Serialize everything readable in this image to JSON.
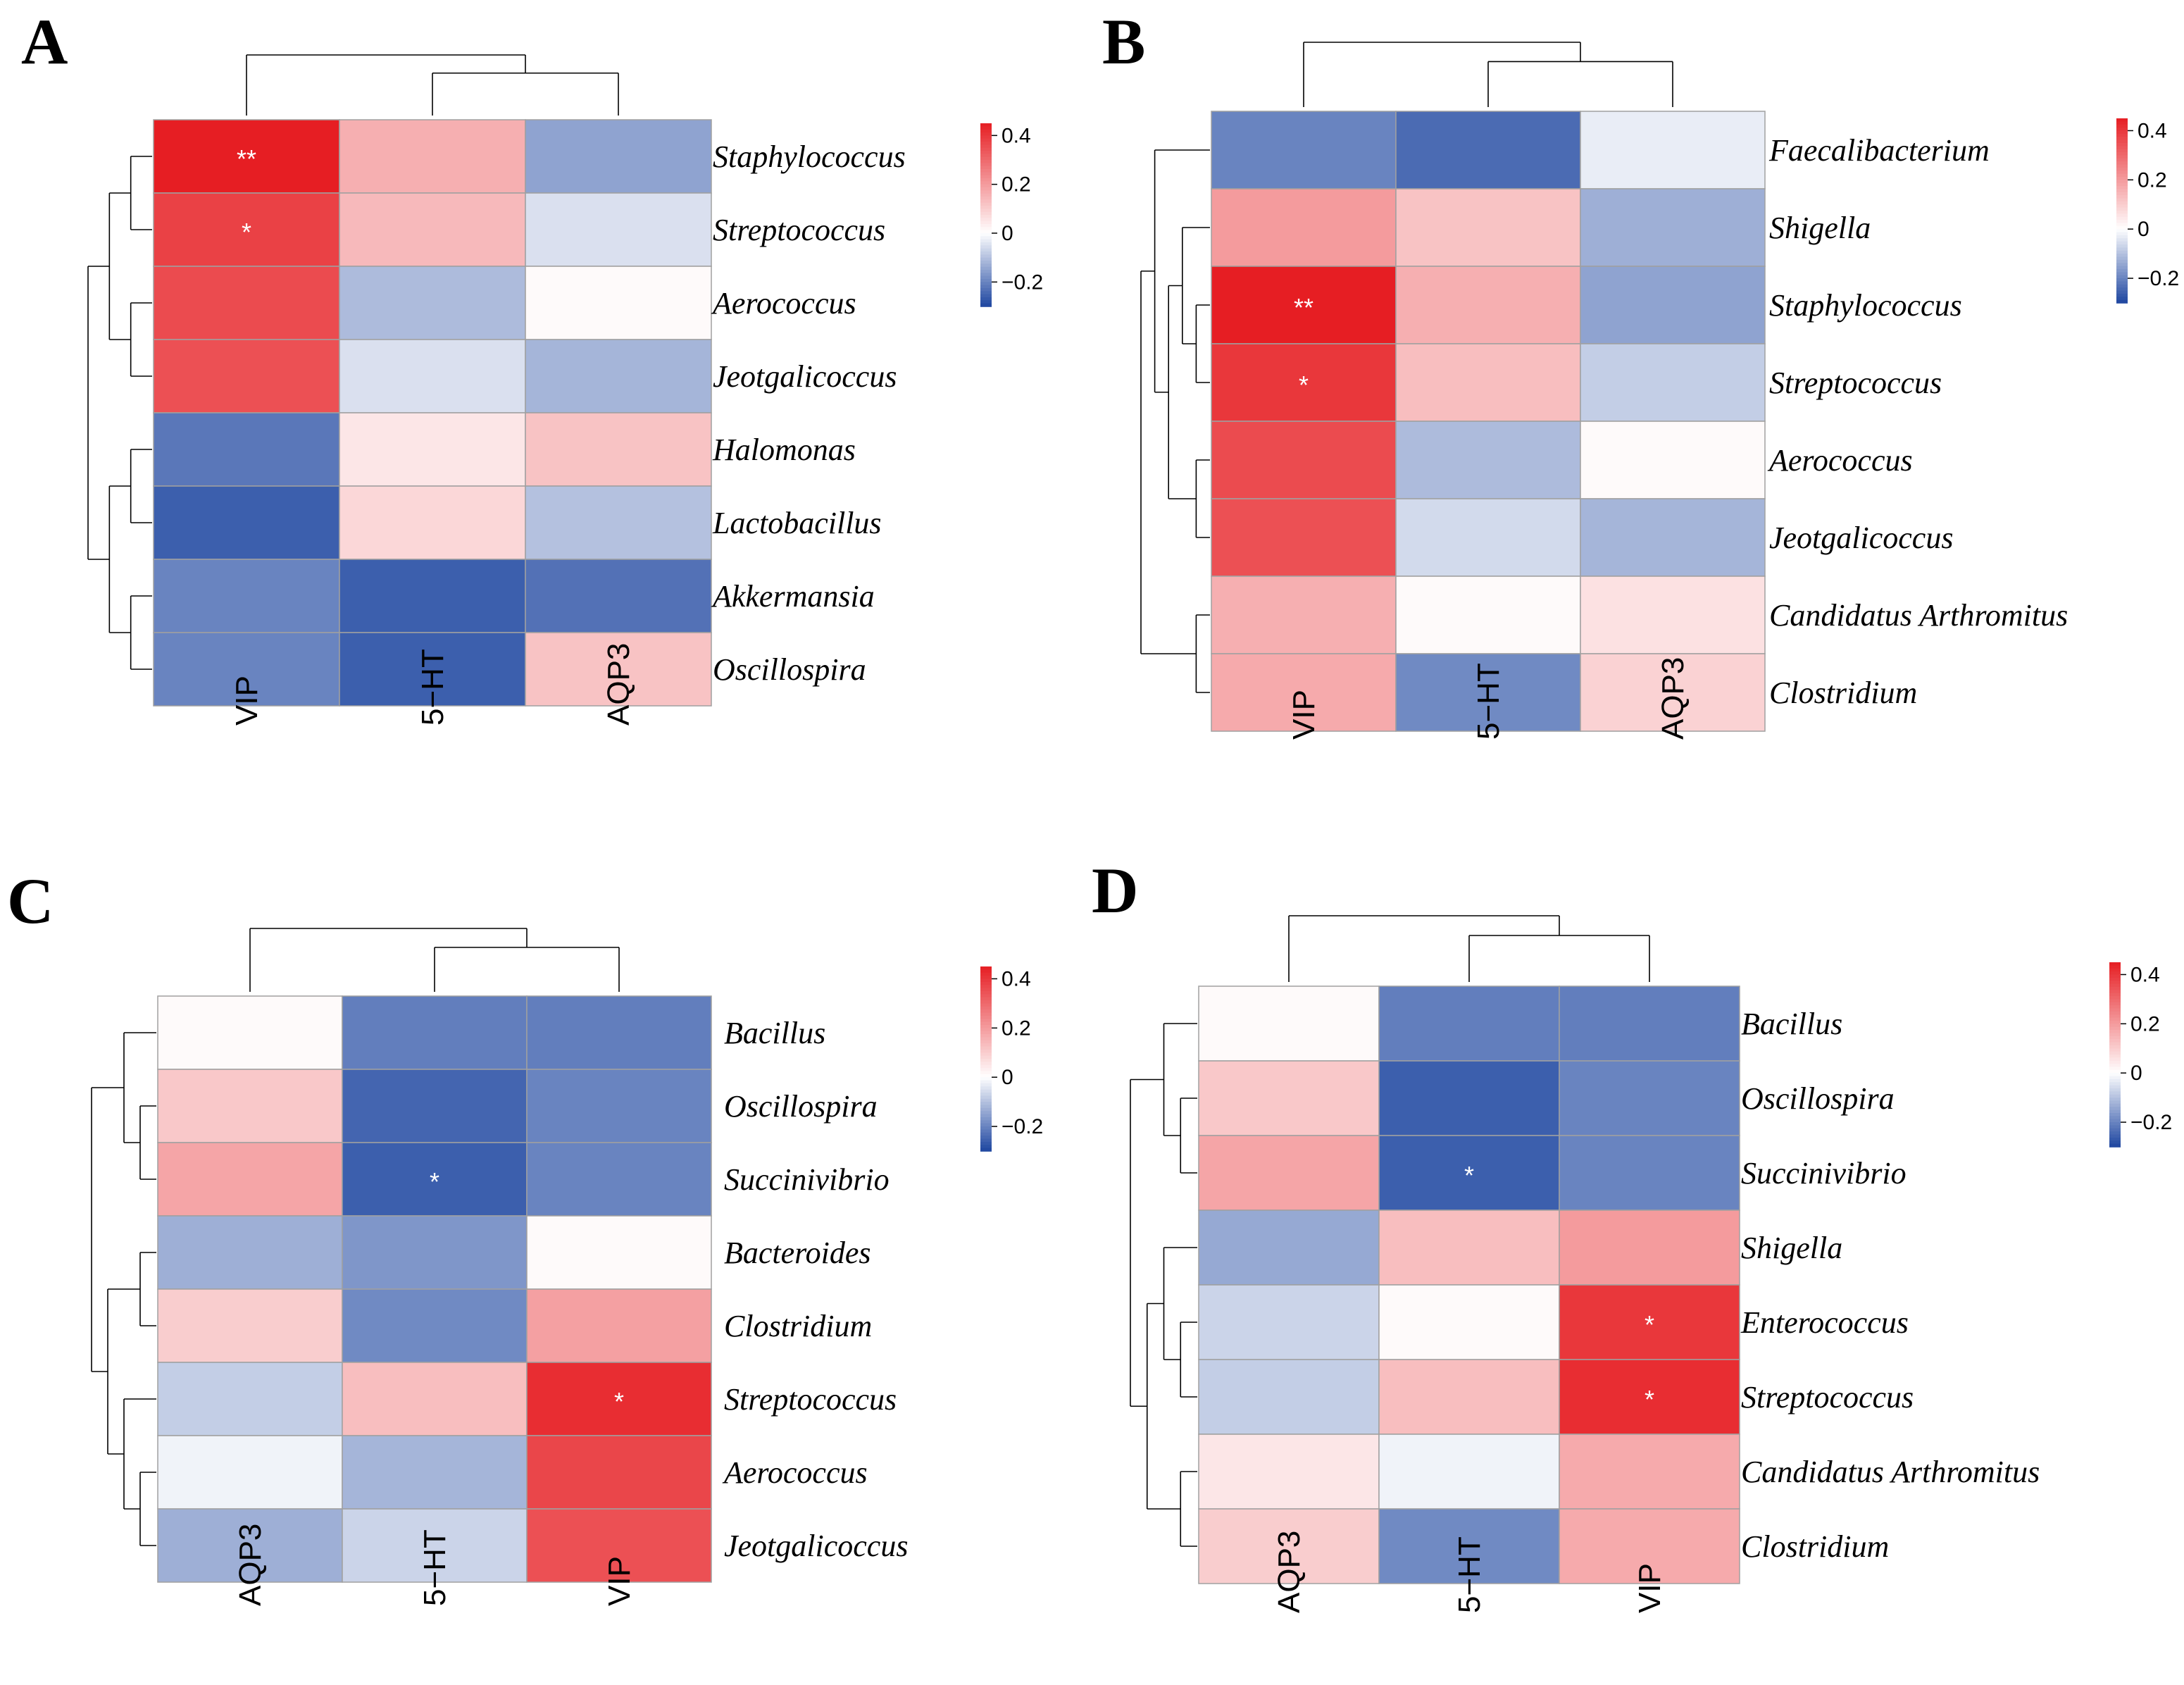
{
  "figure_title": "",
  "colors": {
    "neg": "#1e46a0",
    "mid": "#ffffff",
    "pos": "#e61e23",
    "cell_border": "#a0a0a0",
    "significance_mark": "#ffffff"
  },
  "chart_data": [
    {
      "type": "heatmap",
      "panel": "A",
      "columns": [
        "VIP",
        "5−HT",
        "AQP3"
      ],
      "rows": [
        "Staphylococcus",
        "Streptococcus",
        "Aerococcus",
        "Jeotgalicoccus",
        "Halomonas",
        "Lactobacillus",
        "Akkermansia",
        "Oscillospira"
      ],
      "values": [
        [
          0.45,
          0.16,
          -0.15
        ],
        [
          0.38,
          0.14,
          -0.05
        ],
        [
          0.36,
          -0.11,
          0.01
        ],
        [
          0.35,
          -0.05,
          -0.12
        ],
        [
          -0.22,
          0.05,
          0.12
        ],
        [
          -0.26,
          0.08,
          -0.1
        ],
        [
          -0.2,
          -0.26,
          -0.23
        ],
        [
          -0.2,
          -0.26,
          0.12
        ]
      ],
      "significance": [
        [
          "**",
          "",
          ""
        ],
        [
          "*",
          "",
          ""
        ],
        [
          "",
          "",
          ""
        ],
        [
          "",
          "",
          ""
        ],
        [
          "",
          "",
          ""
        ],
        [
          "",
          "",
          ""
        ],
        [
          "",
          "",
          ""
        ],
        [
          "",
          "",
          ""
        ]
      ],
      "colorbar": {
        "range": [
          -0.3,
          0.45
        ],
        "ticks": [
          0.4,
          0.2,
          0,
          -0.2
        ],
        "tick_labels": [
          "0.4",
          "0.2",
          "0",
          "−0.2"
        ]
      }
    },
    {
      "type": "heatmap",
      "panel": "B",
      "columns": [
        "VIP",
        "5−HT",
        "AQP3"
      ],
      "rows": [
        "Faecalibacterium",
        "Shigella",
        "Staphylococcus",
        "Streptococcus",
        "Aerococcus",
        "Jeotgalicoccus",
        "Candidatus Arthromitus",
        "Clostridium"
      ],
      "values": [
        [
          -0.2,
          -0.24,
          -0.03
        ],
        [
          0.2,
          0.12,
          -0.13
        ],
        [
          0.45,
          0.16,
          -0.15
        ],
        [
          0.4,
          0.13,
          -0.08
        ],
        [
          0.36,
          -0.11,
          0.01
        ],
        [
          0.35,
          -0.06,
          -0.12
        ],
        [
          0.16,
          0.01,
          0.06
        ],
        [
          0.17,
          -0.19,
          0.09
        ]
      ],
      "significance": [
        [
          "",
          "",
          ""
        ],
        [
          "",
          "",
          ""
        ],
        [
          "**",
          "",
          ""
        ],
        [
          "*",
          "",
          ""
        ],
        [
          "",
          "",
          ""
        ],
        [
          "",
          "",
          ""
        ],
        [
          "",
          "",
          ""
        ],
        [
          "",
          "",
          ""
        ]
      ],
      "colorbar": {
        "range": [
          -0.3,
          0.45
        ],
        "ticks": [
          0.4,
          0.2,
          0,
          -0.2
        ],
        "tick_labels": [
          "0.4",
          "0.2",
          "0",
          "−0.2"
        ]
      }
    },
    {
      "type": "heatmap",
      "panel": "C",
      "columns": [
        "AQP3",
        "5−HT",
        "VIP"
      ],
      "rows": [
        "Bacillus",
        "Oscillospira",
        "Succinivibrio",
        "Bacteroides",
        "Clostridium",
        "Streptococcus",
        "Aerococcus",
        "Jeotgalicoccus"
      ],
      "values": [
        [
          0.01,
          -0.21,
          -0.21
        ],
        [
          0.11,
          -0.25,
          -0.2
        ],
        [
          0.18,
          -0.26,
          -0.2
        ],
        [
          -0.13,
          -0.17,
          0.01
        ],
        [
          0.1,
          -0.19,
          0.19
        ],
        [
          -0.08,
          0.13,
          0.42
        ],
        [
          -0.02,
          -0.12,
          0.37
        ],
        [
          -0.13,
          -0.07,
          0.35
        ]
      ],
      "significance": [
        [
          "",
          "",
          ""
        ],
        [
          "",
          "",
          ""
        ],
        [
          "",
          "*",
          ""
        ],
        [
          "",
          "",
          ""
        ],
        [
          "",
          "",
          ""
        ],
        [
          "",
          "",
          "*"
        ],
        [
          "",
          "",
          ""
        ],
        [
          "",
          "",
          ""
        ]
      ],
      "colorbar": {
        "range": [
          -0.3,
          0.45
        ],
        "ticks": [
          0.4,
          0.2,
          0,
          -0.2
        ],
        "tick_labels": [
          "0.4",
          "0.2",
          "0",
          "−0.2"
        ]
      }
    },
    {
      "type": "heatmap",
      "panel": "D",
      "columns": [
        "AQP3",
        "5−HT",
        "VIP"
      ],
      "rows": [
        "Bacillus",
        "Oscillospira",
        "Succinivibrio",
        "Shigella",
        "Enterococcus",
        "Streptococcus",
        "Candidatus Arthromitus",
        "Clostridium"
      ],
      "values": [
        [
          0.01,
          -0.21,
          -0.21
        ],
        [
          0.11,
          -0.26,
          -0.2
        ],
        [
          0.18,
          -0.26,
          -0.2
        ],
        [
          -0.14,
          0.13,
          0.2
        ],
        [
          -0.07,
          0.01,
          0.4
        ],
        [
          -0.08,
          0.13,
          0.42
        ],
        [
          0.05,
          -0.02,
          0.17
        ],
        [
          0.1,
          -0.19,
          0.17
        ]
      ],
      "significance": [
        [
          "",
          "",
          ""
        ],
        [
          "",
          "",
          ""
        ],
        [
          "",
          "*",
          ""
        ],
        [
          "",
          "",
          ""
        ],
        [
          "",
          "",
          "*"
        ],
        [
          "",
          "",
          "*"
        ],
        [
          "",
          "",
          ""
        ],
        [
          "",
          "",
          ""
        ]
      ],
      "colorbar": {
        "range": [
          -0.3,
          0.45
        ],
        "ticks": [
          0.4,
          0.2,
          0,
          -0.2
        ],
        "tick_labels": [
          "0.4",
          "0.2",
          "0",
          "−0.2"
        ]
      }
    }
  ]
}
